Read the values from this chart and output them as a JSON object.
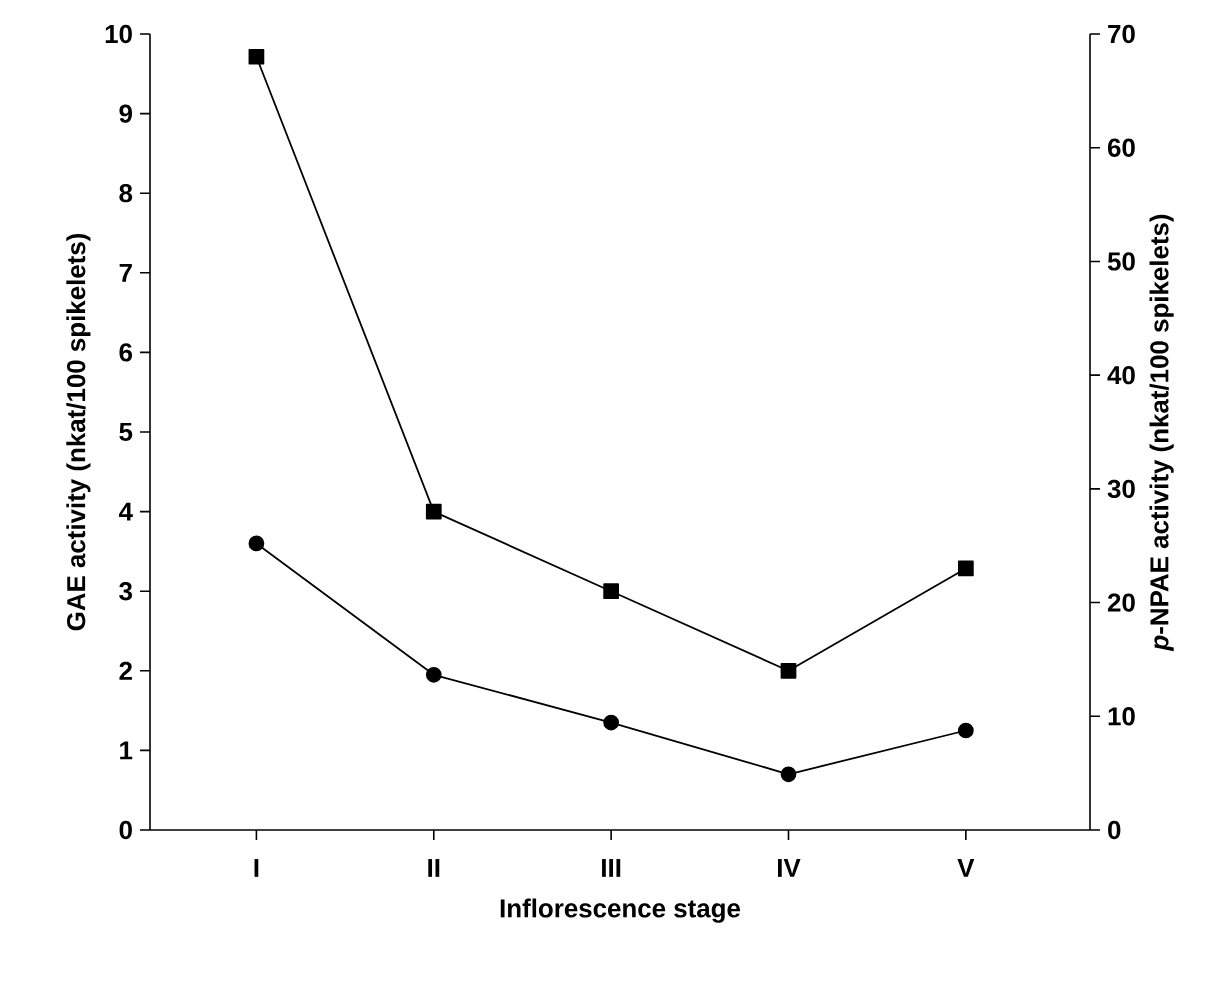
{
  "chart_data": {
    "type": "line",
    "xlabel": "Inflorescence stage",
    "ylabel": "GAE activity (nkat/100 spikelets)",
    "y2label": "*p*-NPAE activity (nkat/100 spikelets)",
    "categories": [
      "I",
      "II",
      "III",
      "IV",
      "V"
    ],
    "series": [
      {
        "color": "#000000",
        "marker": "circle",
        "values": [
          3.6,
          1.95,
          1.35,
          0.7,
          1.25
        ]
      },
      {
        "color": "#000000",
        "marker": "square",
        "axis": "y2",
        "values": [
          68,
          28,
          21,
          14,
          23
        ]
      }
    ],
    "ylim": [
      0,
      10
    ],
    "yticks": [
      0,
      1,
      2,
      3,
      4,
      5,
      6,
      7,
      8,
      9,
      10
    ],
    "y2lim": [
      0,
      70
    ],
    "y2ticks": [
      0,
      10,
      20,
      30,
      40,
      50,
      60,
      70
    ],
    "line_style": "solid"
  }
}
